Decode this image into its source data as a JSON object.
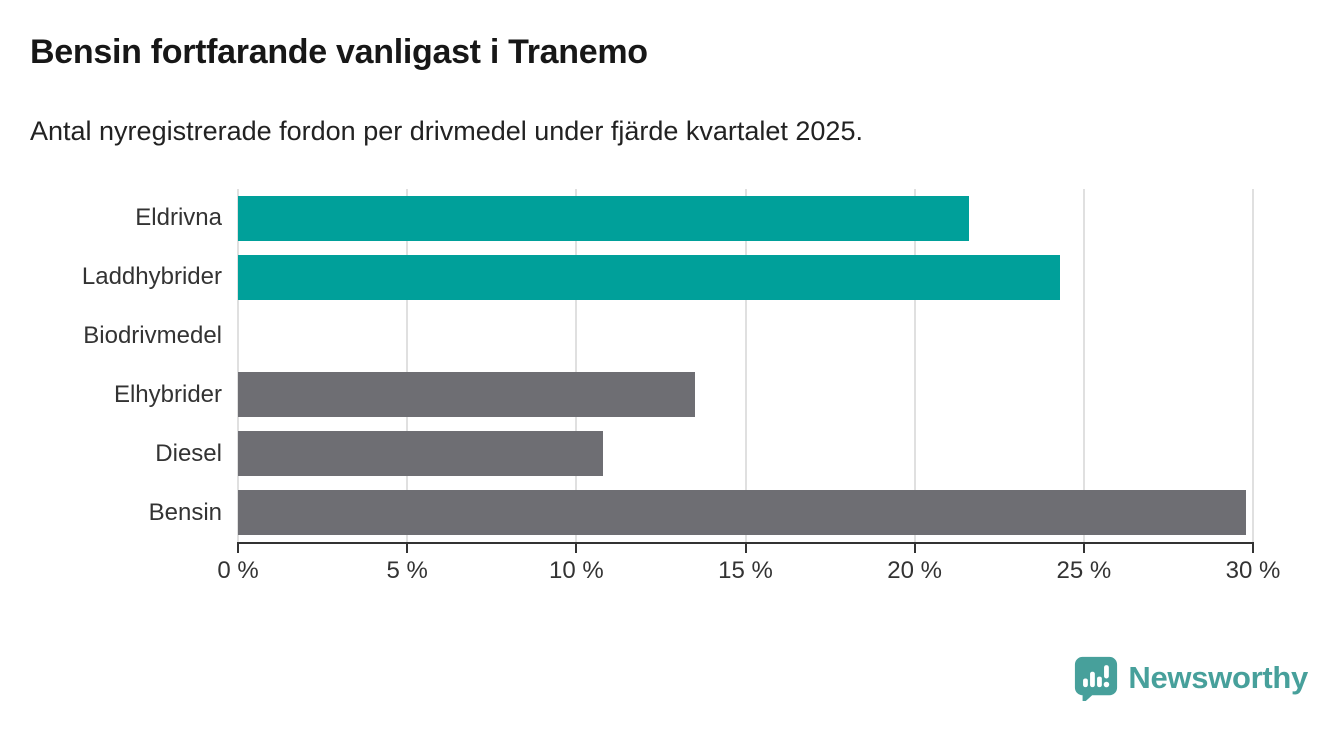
{
  "header": {
    "title": "Bensin fortfarande vanligast i Tranemo",
    "subtitle": "Antal nyregistrerade fordon per drivmedel under fjärde kvartalet 2025."
  },
  "chart_data": {
    "type": "bar",
    "orientation": "horizontal",
    "title": "Bensin fortfarande vanligast i Tranemo",
    "subtitle": "Antal nyregistrerade fordon per drivmedel under fjärde kvartalet 2025.",
    "categories": [
      "Eldrivna",
      "Laddhybrider",
      "Biodrivmedel",
      "Elhybrider",
      "Diesel",
      "Bensin"
    ],
    "values": [
      21.6,
      24.3,
      0,
      13.5,
      10.8,
      29.8
    ],
    "unit": "%",
    "bar_colors": [
      "#00a09a",
      "#00a09a",
      "#00a09a",
      "#6e6e73",
      "#6e6e73",
      "#6e6e73"
    ],
    "xlim": [
      0,
      30
    ],
    "x_ticks": [
      0,
      5,
      10,
      15,
      20,
      25,
      30
    ],
    "x_tick_labels": [
      "0 %",
      "5 %",
      "10 %",
      "15 %",
      "20 %",
      "25 %",
      "30 %"
    ],
    "grid": true,
    "legend": "none"
  },
  "footer": {
    "logo_text": "Newsworthy"
  },
  "colors": {
    "teal_bar": "#00a09a",
    "gray_bar": "#6e6e73",
    "gridline": "#e0e0e0",
    "axis": "#333333",
    "label_text": "#333333",
    "logo_teal": "#47a09b"
  }
}
